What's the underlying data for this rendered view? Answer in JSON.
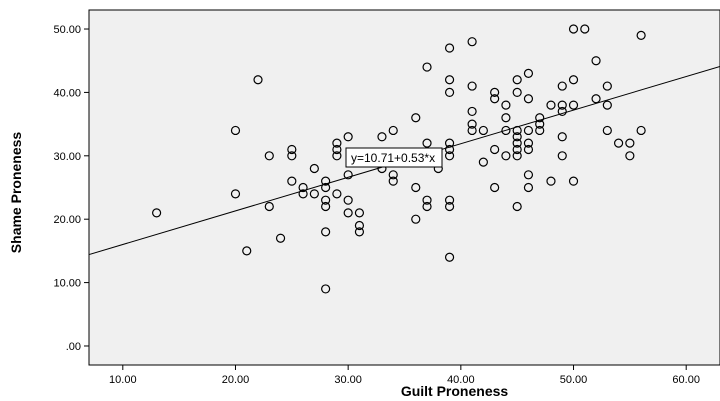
{
  "chart_data": {
    "type": "scatter",
    "xlabel": "Guilt Proneness",
    "ylabel": "Shame Proneness",
    "xlim": [
      7,
      63
    ],
    "ylim": [
      -3,
      53
    ],
    "x_ticks": [
      10,
      20,
      30,
      40,
      50,
      60
    ],
    "x_tick_labels": [
      "10.00",
      "20.00",
      "30.00",
      "40.00",
      "50.00",
      "60.00"
    ],
    "y_ticks": [
      0,
      10,
      20,
      30,
      40,
      50
    ],
    "y_tick_labels": [
      ".00",
      "10.00",
      "20.00",
      "30.00",
      "40.00",
      "50.00"
    ],
    "grid": false,
    "background": "#f0f0f0",
    "point_color": "#000000",
    "fit_line": {
      "intercept": 10.71,
      "slope": 0.53,
      "label": "y=10.71+0.53*x"
    },
    "points": [
      {
        "x": 13,
        "y": 21
      },
      {
        "x": 20,
        "y": 34
      },
      {
        "x": 20,
        "y": 24
      },
      {
        "x": 21,
        "y": 15
      },
      {
        "x": 22,
        "y": 42
      },
      {
        "x": 23,
        "y": 30
      },
      {
        "x": 23,
        "y": 22
      },
      {
        "x": 24,
        "y": 17
      },
      {
        "x": 25,
        "y": 31
      },
      {
        "x": 25,
        "y": 30
      },
      {
        "x": 25,
        "y": 26
      },
      {
        "x": 26,
        "y": 25
      },
      {
        "x": 26,
        "y": 24
      },
      {
        "x": 27,
        "y": 28
      },
      {
        "x": 27,
        "y": 24
      },
      {
        "x": 28,
        "y": 26
      },
      {
        "x": 28,
        "y": 25
      },
      {
        "x": 28,
        "y": 23
      },
      {
        "x": 28,
        "y": 22
      },
      {
        "x": 28,
        "y": 18
      },
      {
        "x": 28,
        "y": 9
      },
      {
        "x": 29,
        "y": 32
      },
      {
        "x": 29,
        "y": 31
      },
      {
        "x": 29,
        "y": 30
      },
      {
        "x": 29,
        "y": 24
      },
      {
        "x": 30,
        "y": 33
      },
      {
        "x": 30,
        "y": 27
      },
      {
        "x": 30,
        "y": 23
      },
      {
        "x": 30,
        "y": 21
      },
      {
        "x": 31,
        "y": 21
      },
      {
        "x": 31,
        "y": 19
      },
      {
        "x": 31,
        "y": 18
      },
      {
        "x": 33,
        "y": 33
      },
      {
        "x": 33,
        "y": 28
      },
      {
        "x": 34,
        "y": 34
      },
      {
        "x": 34,
        "y": 27
      },
      {
        "x": 34,
        "y": 26
      },
      {
        "x": 36,
        "y": 36
      },
      {
        "x": 36,
        "y": 25
      },
      {
        "x": 36,
        "y": 20
      },
      {
        "x": 37,
        "y": 44
      },
      {
        "x": 37,
        "y": 32
      },
      {
        "x": 37,
        "y": 23
      },
      {
        "x": 37,
        "y": 22
      },
      {
        "x": 38,
        "y": 28
      },
      {
        "x": 39,
        "y": 47
      },
      {
        "x": 39,
        "y": 42
      },
      {
        "x": 39,
        "y": 40
      },
      {
        "x": 39,
        "y": 32
      },
      {
        "x": 39,
        "y": 31
      },
      {
        "x": 39,
        "y": 30
      },
      {
        "x": 39,
        "y": 23
      },
      {
        "x": 39,
        "y": 22
      },
      {
        "x": 39,
        "y": 14
      },
      {
        "x": 41,
        "y": 48
      },
      {
        "x": 41,
        "y": 41
      },
      {
        "x": 41,
        "y": 37
      },
      {
        "x": 41,
        "y": 35
      },
      {
        "x": 41,
        "y": 34
      },
      {
        "x": 42,
        "y": 34
      },
      {
        "x": 42,
        "y": 29
      },
      {
        "x": 43,
        "y": 40
      },
      {
        "x": 43,
        "y": 39
      },
      {
        "x": 43,
        "y": 31
      },
      {
        "x": 43,
        "y": 25
      },
      {
        "x": 44,
        "y": 38
      },
      {
        "x": 44,
        "y": 36
      },
      {
        "x": 44,
        "y": 34
      },
      {
        "x": 44,
        "y": 30
      },
      {
        "x": 45,
        "y": 42
      },
      {
        "x": 45,
        "y": 40
      },
      {
        "x": 45,
        "y": 34
      },
      {
        "x": 45,
        "y": 33
      },
      {
        "x": 45,
        "y": 32
      },
      {
        "x": 45,
        "y": 31
      },
      {
        "x": 45,
        "y": 30
      },
      {
        "x": 45,
        "y": 22
      },
      {
        "x": 46,
        "y": 43
      },
      {
        "x": 46,
        "y": 39
      },
      {
        "x": 46,
        "y": 34
      },
      {
        "x": 46,
        "y": 32
      },
      {
        "x": 46,
        "y": 31
      },
      {
        "x": 46,
        "y": 27
      },
      {
        "x": 46,
        "y": 25
      },
      {
        "x": 47,
        "y": 36
      },
      {
        "x": 47,
        "y": 35
      },
      {
        "x": 47,
        "y": 34
      },
      {
        "x": 48,
        "y": 38
      },
      {
        "x": 48,
        "y": 26
      },
      {
        "x": 49,
        "y": 41
      },
      {
        "x": 49,
        "y": 38
      },
      {
        "x": 49,
        "y": 37
      },
      {
        "x": 49,
        "y": 33
      },
      {
        "x": 49,
        "y": 30
      },
      {
        "x": 50,
        "y": 50
      },
      {
        "x": 50,
        "y": 42
      },
      {
        "x": 50,
        "y": 38
      },
      {
        "x": 50,
        "y": 26
      },
      {
        "x": 51,
        "y": 50
      },
      {
        "x": 52,
        "y": 45
      },
      {
        "x": 52,
        "y": 39
      },
      {
        "x": 53,
        "y": 41
      },
      {
        "x": 53,
        "y": 38
      },
      {
        "x": 53,
        "y": 34
      },
      {
        "x": 54,
        "y": 32
      },
      {
        "x": 55,
        "y": 32
      },
      {
        "x": 55,
        "y": 30
      },
      {
        "x": 56,
        "y": 49
      },
      {
        "x": 56,
        "y": 34
      }
    ]
  }
}
